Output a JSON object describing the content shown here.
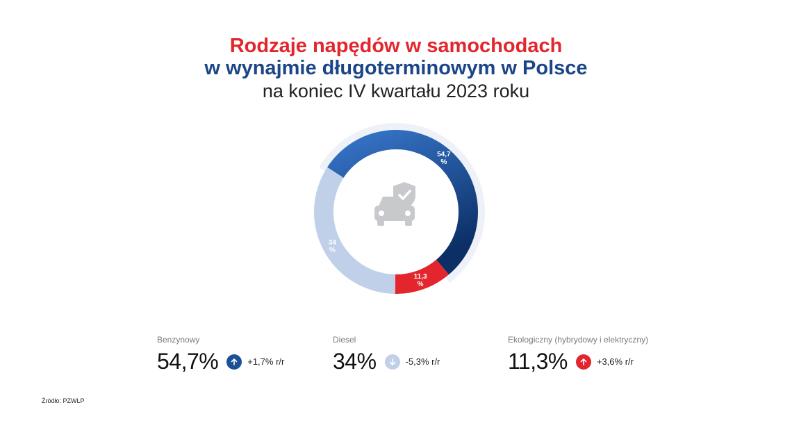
{
  "title": {
    "line1": "Rodzaje napędów w samochodach",
    "line2": "w wynajmie długoterminowym w Polsce",
    "line3": "na koniec IV kwartału 2023 roku"
  },
  "chart_data": {
    "type": "pie",
    "categories": [
      "Benzynowy",
      "Ekologiczny (hybrydowy i elektryczny)",
      "Diesel"
    ],
    "values": [
      54.7,
      11.3,
      34
    ],
    "data_labels": [
      "54,7\n%",
      "11,3\n%",
      "34\n%"
    ],
    "colors": [
      "#1f5aa8",
      "#e3262d",
      "#c0d0e8"
    ],
    "center_icon": "car-shield-check-icon"
  },
  "stats": [
    {
      "name": "Benzynowy",
      "value": "54,7%",
      "change": "+1,7% r/r",
      "direction": "up",
      "color": "#1c4f96"
    },
    {
      "name": "Diesel",
      "value": "34%",
      "change": "-5,3% r/r",
      "direction": "down",
      "color": "#c0d0e8"
    },
    {
      "name": "Ekologiczny (hybrydowy i elektryczny)",
      "value": "11,3%",
      "change": "+3,6% r/r",
      "direction": "up",
      "color": "#e3262d"
    }
  ],
  "source": "Źródło: PZWLP"
}
